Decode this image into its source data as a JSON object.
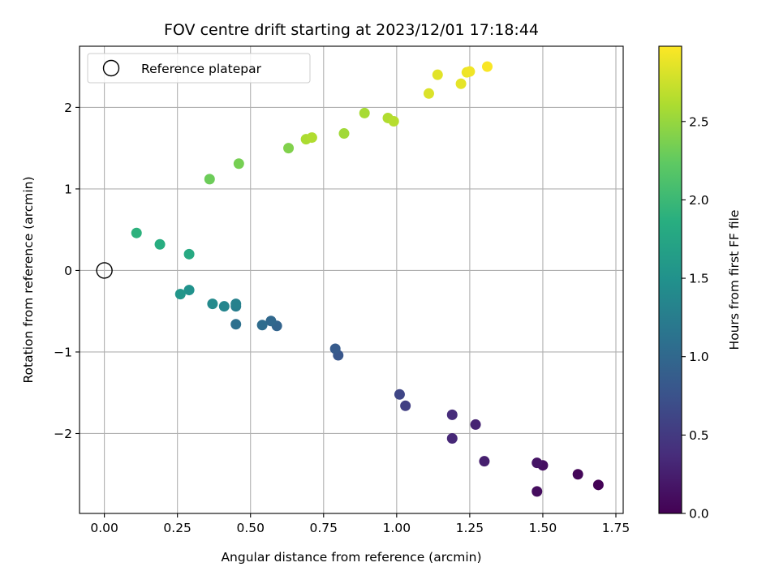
{
  "chart_data": {
    "type": "scatter",
    "title": "FOV centre drift starting at 2023/12/01 17:18:44",
    "xlabel": "Angular distance from reference (arcmin)",
    "ylabel": "Rotation from reference (arcmin)",
    "xlim": [
      -0.085,
      1.775
    ],
    "ylim": [
      -2.98,
      2.75
    ],
    "xticks": [
      0.0,
      0.25,
      0.5,
      0.75,
      1.0,
      1.25,
      1.5,
      1.75
    ],
    "xtick_labels": [
      "0.00",
      "0.25",
      "0.50",
      "0.75",
      "1.00",
      "1.25",
      "1.50",
      "1.75"
    ],
    "yticks": [
      -2,
      -1,
      0,
      1,
      2
    ],
    "ytick_labels": [
      "−2",
      "−1",
      "0",
      "1",
      "2"
    ],
    "grid": true,
    "legend": {
      "placement": "top-left",
      "entries": [
        "Reference platepar"
      ]
    },
    "reference_point": {
      "x": 0.0,
      "y": 0.0
    },
    "colorbar": {
      "label": "Hours from first FF file",
      "colormap": "viridis",
      "range": [
        0.0,
        2.98
      ],
      "ticks": [
        0.0,
        0.5,
        1.0,
        1.5,
        2.0,
        2.5
      ],
      "tick_labels": [
        "0.0",
        "0.5",
        "1.0",
        "1.5",
        "2.0",
        "2.5"
      ]
    },
    "points": [
      {
        "x": 1.69,
        "y": -2.63,
        "c": 0.02
      },
      {
        "x": 1.62,
        "y": -2.5,
        "c": 0.05
      },
      {
        "x": 1.48,
        "y": -2.71,
        "c": 0.1
      },
      {
        "x": 1.5,
        "y": -2.39,
        "c": 0.12
      },
      {
        "x": 1.48,
        "y": -2.36,
        "c": 0.16
      },
      {
        "x": 1.3,
        "y": -2.34,
        "c": 0.25
      },
      {
        "x": 1.27,
        "y": -1.89,
        "c": 0.3
      },
      {
        "x": 1.19,
        "y": -2.06,
        "c": 0.33
      },
      {
        "x": 1.19,
        "y": -1.77,
        "c": 0.37
      },
      {
        "x": 1.03,
        "y": -1.66,
        "c": 0.55
      },
      {
        "x": 1.01,
        "y": -1.52,
        "c": 0.62
      },
      {
        "x": 0.8,
        "y": -1.04,
        "c": 0.8
      },
      {
        "x": 0.79,
        "y": -0.96,
        "c": 0.85
      },
      {
        "x": 0.59,
        "y": -0.68,
        "c": 0.95
      },
      {
        "x": 0.57,
        "y": -0.62,
        "c": 1.0
      },
      {
        "x": 0.54,
        "y": -0.67,
        "c": 1.05
      },
      {
        "x": 0.45,
        "y": -0.66,
        "c": 1.1
      },
      {
        "x": 0.45,
        "y": -0.44,
        "c": 1.25
      },
      {
        "x": 0.45,
        "y": -0.41,
        "c": 1.3
      },
      {
        "x": 0.41,
        "y": -0.44,
        "c": 1.35
      },
      {
        "x": 0.37,
        "y": -0.41,
        "c": 1.4
      },
      {
        "x": 0.29,
        "y": -0.24,
        "c": 1.5
      },
      {
        "x": 0.26,
        "y": -0.29,
        "c": 1.55
      },
      {
        "x": 0.29,
        "y": 0.2,
        "c": 1.8
      },
      {
        "x": 0.19,
        "y": 0.32,
        "c": 1.85
      },
      {
        "x": 0.11,
        "y": 0.46,
        "c": 1.9
      },
      {
        "x": 0.36,
        "y": 1.12,
        "c": 2.3
      },
      {
        "x": 0.46,
        "y": 1.31,
        "c": 2.35
      },
      {
        "x": 0.63,
        "y": 1.5,
        "c": 2.4
      },
      {
        "x": 0.69,
        "y": 1.61,
        "c": 2.6
      },
      {
        "x": 0.71,
        "y": 1.63,
        "c": 2.62
      },
      {
        "x": 0.82,
        "y": 1.68,
        "c": 2.55
      },
      {
        "x": 0.89,
        "y": 1.93,
        "c": 2.58
      },
      {
        "x": 0.97,
        "y": 1.87,
        "c": 2.62
      },
      {
        "x": 0.99,
        "y": 1.83,
        "c": 2.65
      },
      {
        "x": 1.11,
        "y": 2.17,
        "c": 2.82
      },
      {
        "x": 1.14,
        "y": 2.4,
        "c": 2.85
      },
      {
        "x": 1.22,
        "y": 2.29,
        "c": 2.87
      },
      {
        "x": 1.24,
        "y": 2.43,
        "c": 2.9
      },
      {
        "x": 1.25,
        "y": 2.44,
        "c": 2.92
      },
      {
        "x": 1.31,
        "y": 2.5,
        "c": 2.96
      }
    ]
  }
}
